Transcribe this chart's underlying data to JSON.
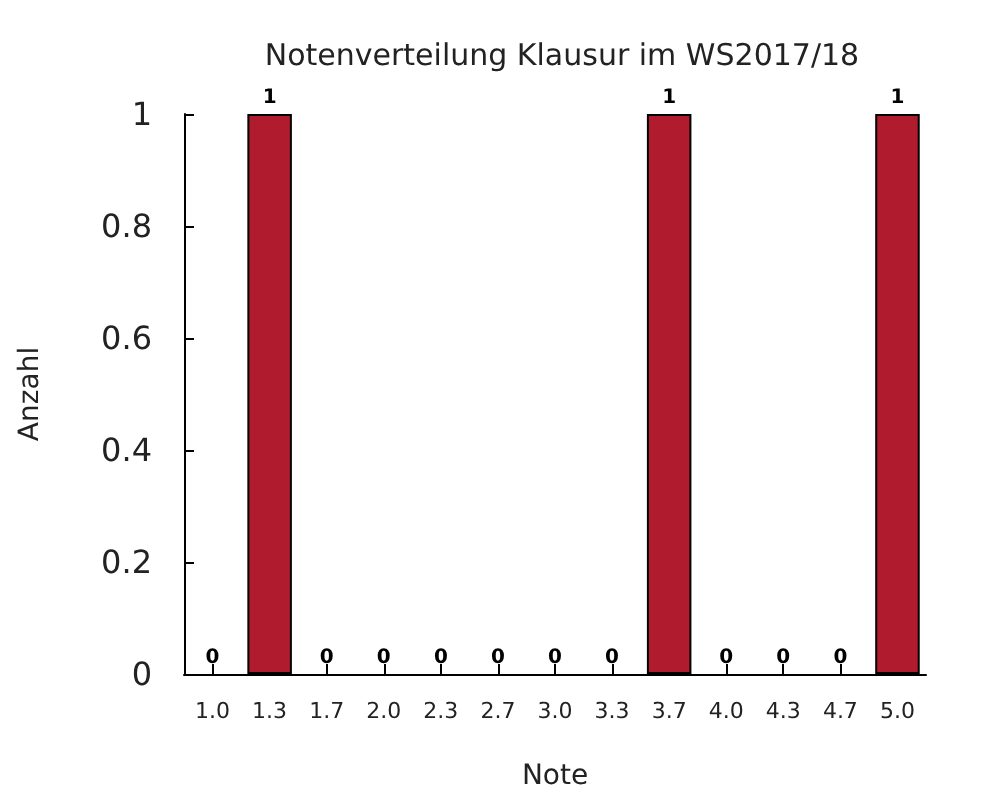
{
  "chart_data": {
    "type": "bar",
    "title": "Notenverteilung Klausur im WS2017/18",
    "xlabel": "Note",
    "ylabel": "Anzahl",
    "categories": [
      "1.0",
      "1.3",
      "1.7",
      "2.0",
      "2.3",
      "2.7",
      "3.0",
      "3.3",
      "3.7",
      "4.0",
      "4.3",
      "4.7",
      "5.0"
    ],
    "values": [
      0,
      1,
      0,
      0,
      0,
      0,
      0,
      0,
      1,
      0,
      0,
      0,
      1
    ],
    "color": "#b01c2e",
    "ylim": [
      0,
      1
    ],
    "yticks": [
      0,
      0.2,
      0.4,
      0.6,
      0.8,
      1
    ],
    "grid": false,
    "data_labels": true
  }
}
